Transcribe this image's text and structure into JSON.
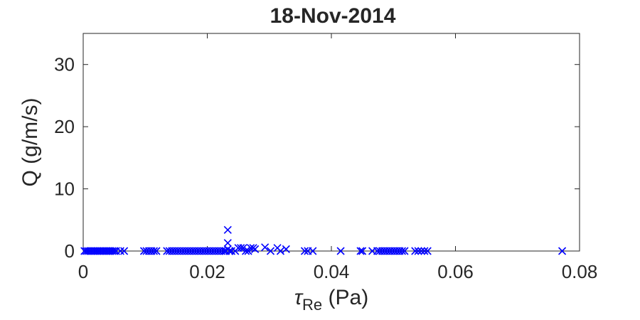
{
  "chart_data": {
    "type": "scatter",
    "title": "18-Nov-2014",
    "xlabel": {
      "symbol": "τ",
      "subscript": "Re",
      "unit": " (Pa)"
    },
    "ylabel": "Q (g/m/s)",
    "xlim": [
      0,
      0.08
    ],
    "ylim": [
      0,
      35
    ],
    "xticks": [
      0,
      0.02,
      0.04,
      0.06,
      0.08
    ],
    "xtick_labels": [
      "0",
      "0.02",
      "0.04",
      "0.06",
      "0.08"
    ],
    "yticks": [
      0,
      10,
      20,
      30
    ],
    "ytick_labels": [
      "0",
      "10",
      "20",
      "30"
    ],
    "grid": false,
    "marker": "x",
    "color": "#0000ff",
    "points": [
      [
        0.0002,
        0
      ],
      [
        0.0005,
        0
      ],
      [
        0.0008,
        0
      ],
      [
        0.0011,
        0
      ],
      [
        0.0014,
        0
      ],
      [
        0.0017,
        0
      ],
      [
        0.002,
        0
      ],
      [
        0.0023,
        0
      ],
      [
        0.0026,
        0
      ],
      [
        0.0029,
        0
      ],
      [
        0.0032,
        0
      ],
      [
        0.0035,
        0
      ],
      [
        0.0038,
        0
      ],
      [
        0.0041,
        0
      ],
      [
        0.0044,
        0
      ],
      [
        0.0047,
        0
      ],
      [
        0.005,
        0
      ],
      [
        0.0053,
        0
      ],
      [
        0.006,
        0
      ],
      [
        0.0066,
        0
      ],
      [
        0.0098,
        0
      ],
      [
        0.0102,
        0
      ],
      [
        0.0106,
        0
      ],
      [
        0.011,
        0
      ],
      [
        0.0114,
        0
      ],
      [
        0.0118,
        0
      ],
      [
        0.0135,
        0
      ],
      [
        0.0139,
        0
      ],
      [
        0.0143,
        0
      ],
      [
        0.0147,
        0
      ],
      [
        0.0151,
        0
      ],
      [
        0.0155,
        0
      ],
      [
        0.0159,
        0
      ],
      [
        0.0163,
        0
      ],
      [
        0.0167,
        0
      ],
      [
        0.0171,
        0
      ],
      [
        0.0175,
        0
      ],
      [
        0.0179,
        0
      ],
      [
        0.0183,
        0
      ],
      [
        0.0187,
        0
      ],
      [
        0.0191,
        0
      ],
      [
        0.0195,
        0
      ],
      [
        0.0199,
        0
      ],
      [
        0.0203,
        0
      ],
      [
        0.0207,
        0
      ],
      [
        0.0211,
        0
      ],
      [
        0.0215,
        0
      ],
      [
        0.0219,
        0
      ],
      [
        0.0223,
        0
      ],
      [
        0.0227,
        0
      ],
      [
        0.023,
        0
      ],
      [
        0.0233,
        0.3
      ],
      [
        0.0233,
        1.3
      ],
      [
        0.0233,
        3.4
      ],
      [
        0.0236,
        0
      ],
      [
        0.0239,
        0
      ],
      [
        0.0245,
        0
      ],
      [
        0.025,
        0.5
      ],
      [
        0.0254,
        0.5
      ],
      [
        0.0258,
        0.5
      ],
      [
        0.0262,
        0
      ],
      [
        0.0266,
        0
      ],
      [
        0.027,
        0.5
      ],
      [
        0.0274,
        0.5
      ],
      [
        0.0277,
        0.3
      ],
      [
        0.0293,
        0.6
      ],
      [
        0.0302,
        0
      ],
      [
        0.0313,
        0.5
      ],
      [
        0.0318,
        0
      ],
      [
        0.0327,
        0.3
      ],
      [
        0.0357,
        0
      ],
      [
        0.0362,
        0
      ],
      [
        0.037,
        0
      ],
      [
        0.0415,
        0
      ],
      [
        0.0447,
        0
      ],
      [
        0.045,
        0
      ],
      [
        0.0466,
        0
      ],
      [
        0.0474,
        0
      ],
      [
        0.0478,
        0
      ],
      [
        0.0482,
        0
      ],
      [
        0.0486,
        0
      ],
      [
        0.049,
        0
      ],
      [
        0.0494,
        0
      ],
      [
        0.0498,
        0
      ],
      [
        0.0502,
        0
      ],
      [
        0.0506,
        0
      ],
      [
        0.051,
        0
      ],
      [
        0.0514,
        0
      ],
      [
        0.0518,
        0
      ],
      [
        0.0535,
        0
      ],
      [
        0.054,
        0
      ],
      [
        0.0545,
        0
      ],
      [
        0.055,
        0
      ],
      [
        0.0555,
        0
      ],
      [
        0.0772,
        0
      ]
    ]
  }
}
